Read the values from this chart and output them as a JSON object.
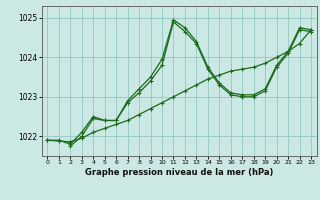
{
  "line1_x": [
    0,
    1,
    2,
    3,
    4,
    5,
    6,
    7,
    8,
    9,
    10,
    11,
    12,
    13,
    14,
    15,
    16,
    17,
    18,
    19,
    20,
    21,
    22,
    23
  ],
  "line1_y": [
    1021.9,
    1021.9,
    1021.8,
    1022.1,
    1022.5,
    1022.4,
    1022.4,
    1022.9,
    1023.2,
    1023.5,
    1023.95,
    1024.95,
    1024.75,
    1024.4,
    1023.75,
    1023.35,
    1023.1,
    1023.05,
    1023.05,
    1023.2,
    1023.8,
    1024.15,
    1024.75,
    1024.7
  ],
  "line2_x": [
    0,
    1,
    2,
    3,
    4,
    5,
    6,
    7,
    8,
    9,
    10,
    11,
    12,
    13,
    14,
    15,
    16,
    17,
    18,
    19,
    20,
    21,
    22,
    23
  ],
  "line2_y": [
    1021.9,
    1021.88,
    1021.86,
    1021.95,
    1022.1,
    1022.2,
    1022.3,
    1022.4,
    1022.55,
    1022.7,
    1022.85,
    1023.0,
    1023.15,
    1023.3,
    1023.45,
    1023.55,
    1023.65,
    1023.7,
    1023.75,
    1023.85,
    1024.0,
    1024.15,
    1024.35,
    1024.7
  ],
  "line3_x": [
    2,
    3,
    4,
    5,
    6,
    7,
    8,
    9,
    10,
    11,
    12,
    13,
    14,
    15,
    16,
    17,
    18,
    19,
    20,
    21,
    22,
    23
  ],
  "line3_y": [
    1021.75,
    1022.0,
    1022.45,
    1022.4,
    1022.4,
    1022.85,
    1023.1,
    1023.4,
    1023.8,
    1024.9,
    1024.65,
    1024.35,
    1023.7,
    1023.3,
    1023.05,
    1023.0,
    1023.0,
    1023.15,
    1023.75,
    1024.1,
    1024.7,
    1024.65
  ],
  "bg_color": "#cce8e4",
  "grid_color": "#99ccc8",
  "line_color": "#1a6b1a",
  "xlabel": "Graphe pression niveau de la mer (hPa)",
  "yticks": [
    1022,
    1023,
    1024,
    1025
  ],
  "xticks": [
    0,
    1,
    2,
    3,
    4,
    5,
    6,
    7,
    8,
    9,
    10,
    11,
    12,
    13,
    14,
    15,
    16,
    17,
    18,
    19,
    20,
    21,
    22,
    23
  ],
  "ylim": [
    1021.5,
    1025.3
  ],
  "xlim": [
    -0.5,
    23.5
  ]
}
